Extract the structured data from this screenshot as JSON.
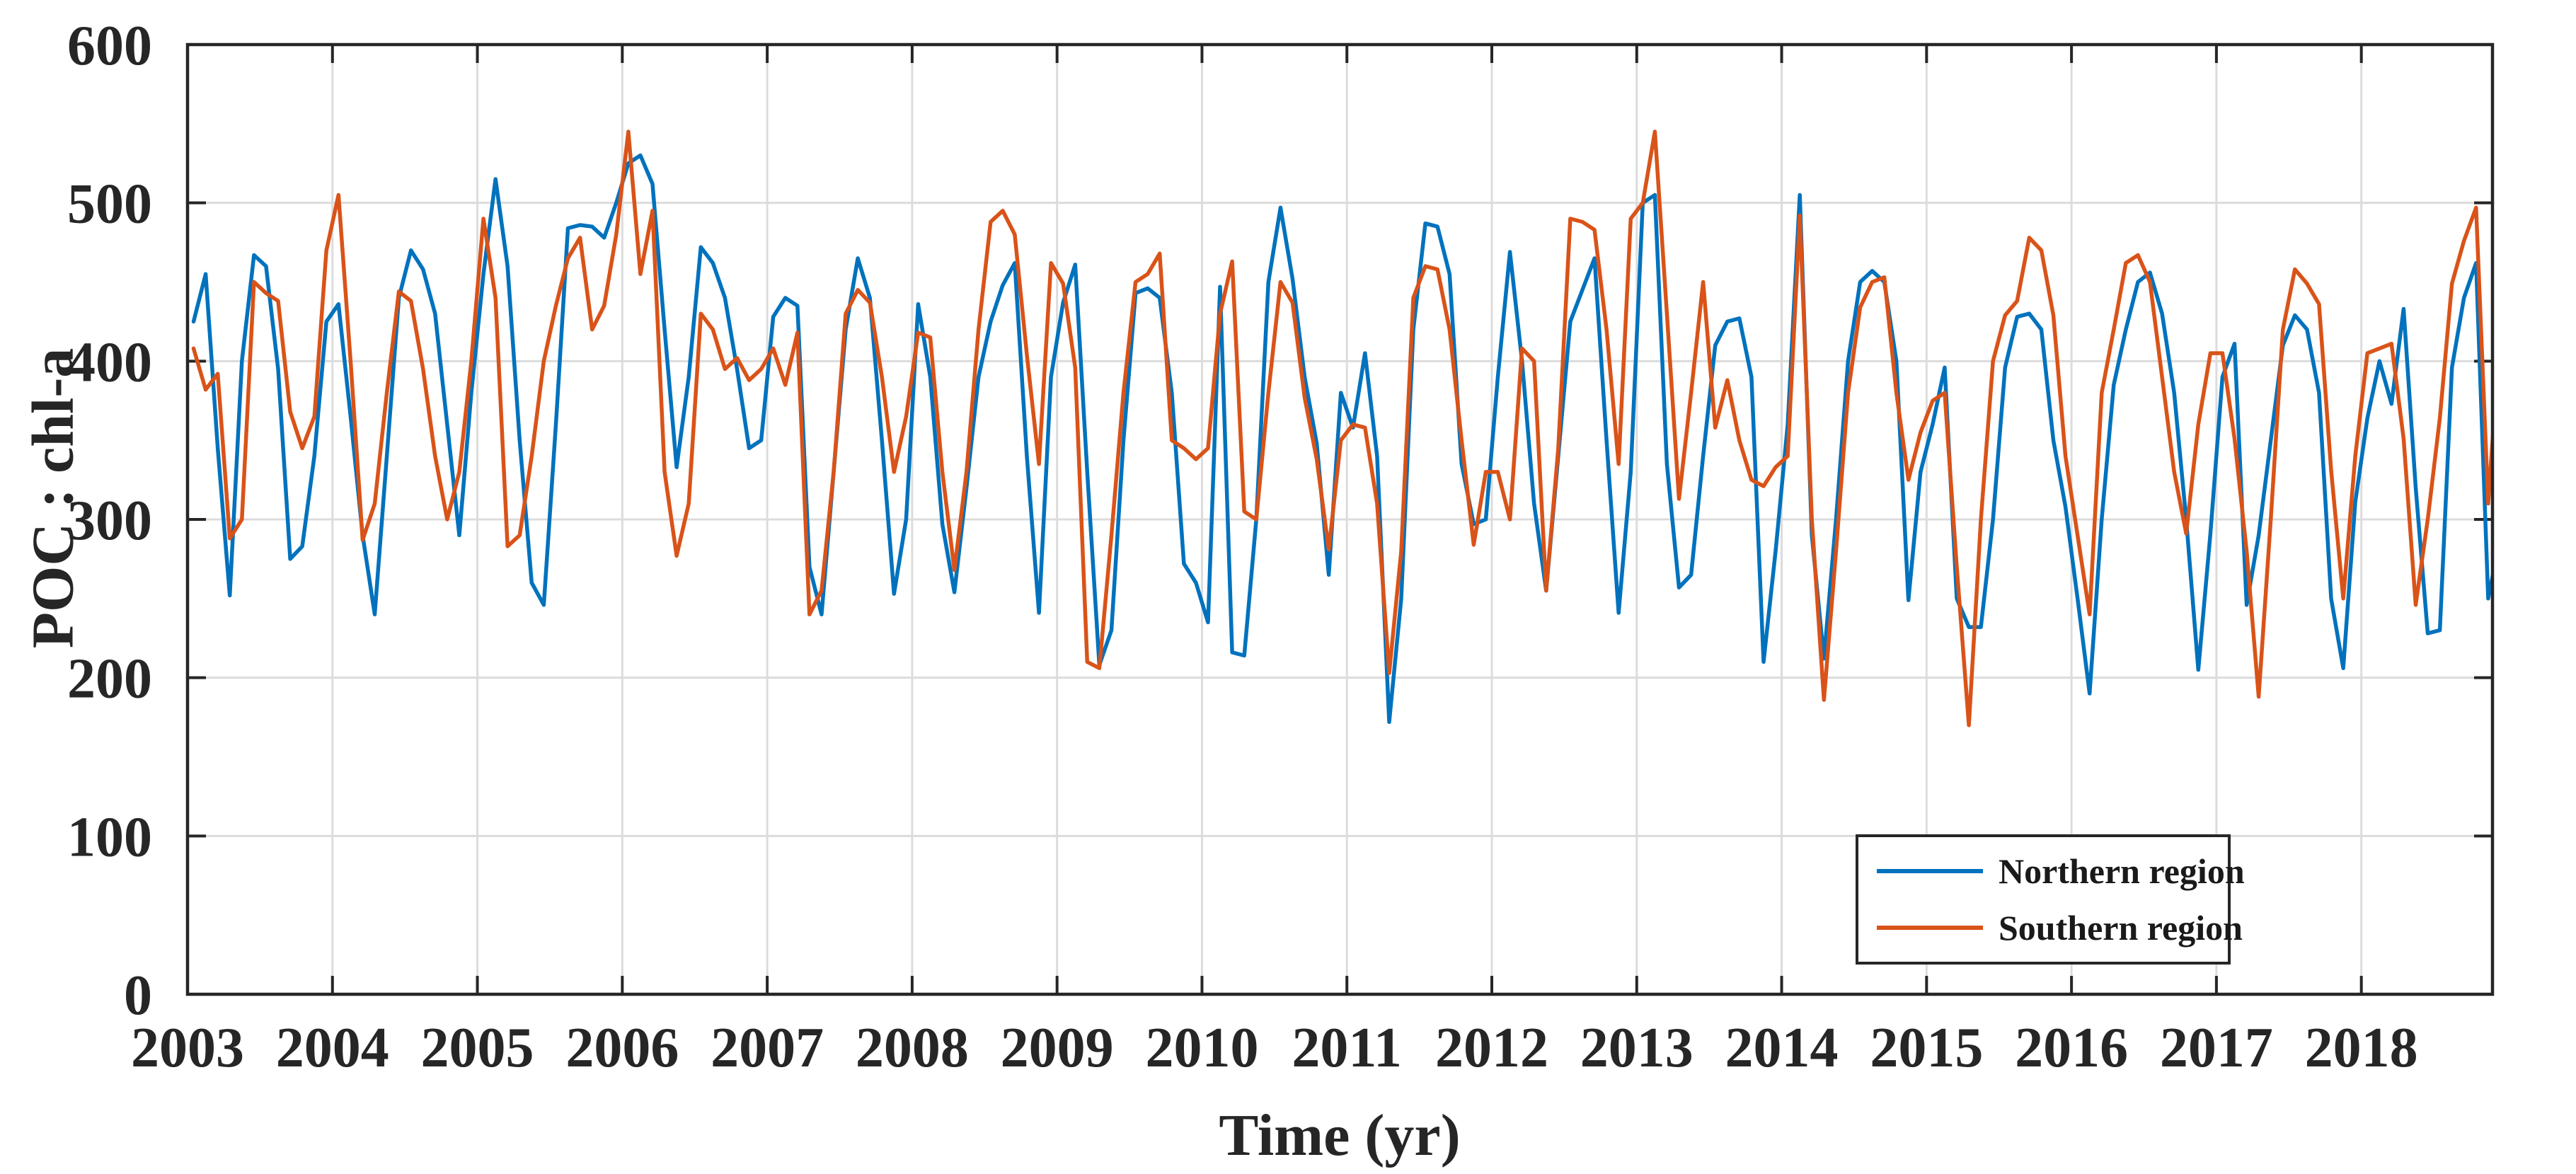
{
  "chart_data": {
    "type": "line",
    "title": "",
    "xlabel": "Time (yr)",
    "ylabel": "POC : chl-a",
    "xlim": [
      2003,
      2018.905
    ],
    "ylim": [
      0,
      600
    ],
    "y_ticks": [
      0,
      100,
      200,
      300,
      400,
      500,
      600
    ],
    "x_ticks": [
      2003,
      2004,
      2005,
      2006,
      2007,
      2008,
      2009,
      2010,
      2011,
      2012,
      2013,
      2014,
      2015,
      2016,
      2017,
      2018
    ],
    "grid": true,
    "legend_position": "bottom-right",
    "x_start_year": 2003,
    "sampling": "monthly",
    "colors": {
      "axis": "#262626",
      "grid": "#dcdcdc",
      "background": "#ffffff"
    },
    "series": [
      {
        "name": "Northern region",
        "color": "#0072BD",
        "values": [
          425,
          455,
          345,
          252,
          400,
          467,
          460,
          395,
          275,
          283,
          340,
          425,
          436,
          365,
          290,
          240,
          340,
          440,
          470,
          458,
          430,
          360,
          290,
          380,
          455,
          515,
          460,
          350,
          260,
          246,
          360,
          484,
          486,
          485,
          478,
          500,
          525,
          530,
          512,
          420,
          333,
          390,
          472,
          462,
          440,
          395,
          345,
          350,
          428,
          440,
          435,
          270,
          240,
          330,
          420,
          465,
          440,
          350,
          253,
          300,
          436,
          390,
          297,
          254,
          320,
          390,
          425,
          448,
          462,
          340,
          241,
          390,
          437,
          461,
          330,
          208,
          230,
          350,
          443,
          446,
          440,
          380,
          272,
          260,
          235,
          447,
          216,
          214,
          300,
          450,
          497,
          452,
          390,
          348,
          265,
          380,
          358,
          405,
          340,
          172,
          250,
          420,
          487,
          485,
          455,
          335,
          297,
          300,
          390,
          469,
          400,
          310,
          255,
          340,
          425,
          445,
          465,
          350,
          241,
          330,
          500,
          505,
          335,
          257,
          265,
          340,
          410,
          425,
          427,
          390,
          210,
          280,
          360,
          505,
          290,
          212,
          300,
          400,
          450,
          457,
          450,
          400,
          249,
          330,
          360,
          396,
          250,
          232,
          232,
          300,
          396,
          428,
          430,
          420,
          350,
          308,
          250,
          190,
          300,
          385,
          420,
          450,
          456,
          430,
          380,
          300,
          205,
          291,
          390,
          411,
          246,
          290,
          350,
          410,
          429,
          420,
          380,
          250,
          206,
          311,
          364,
          400,
          373,
          433,
          320,
          228,
          230,
          396,
          440,
          462,
          250,
          288
        ]
      },
      {
        "name": "Southern region",
        "color": "#D95319",
        "values": [
          408,
          382,
          392,
          288,
          300,
          450,
          443,
          438,
          368,
          345,
          365,
          470,
          505,
          400,
          287,
          310,
          380,
          444,
          438,
          395,
          340,
          300,
          330,
          400,
          490,
          440,
          283,
          290,
          340,
          400,
          435,
          465,
          478,
          420,
          435,
          480,
          545,
          455,
          495,
          330,
          277,
          310,
          430,
          420,
          395,
          402,
          388,
          395,
          408,
          385,
          418,
          240,
          255,
          330,
          430,
          445,
          437,
          390,
          330,
          365,
          418,
          415,
          330,
          268,
          330,
          420,
          488,
          495,
          480,
          404,
          335,
          462,
          449,
          396,
          210,
          206,
          290,
          380,
          450,
          455,
          468,
          350,
          345,
          338,
          345,
          430,
          463,
          305,
          300,
          380,
          450,
          437,
          377,
          338,
          281,
          350,
          360,
          358,
          310,
          203,
          280,
          440,
          460,
          458,
          420,
          350,
          284,
          330,
          330,
          300,
          408,
          400,
          255,
          345,
          490,
          488,
          483,
          420,
          335,
          490,
          500,
          545,
          430,
          313,
          380,
          450,
          358,
          388,
          350,
          325,
          321,
          333,
          340,
          492,
          300,
          186,
          280,
          380,
          434,
          450,
          453,
          380,
          325,
          355,
          375,
          380,
          270,
          170,
          300,
          400,
          429,
          438,
          478,
          470,
          429,
          340,
          290,
          240,
          380,
          420,
          462,
          467,
          450,
          390,
          330,
          291,
          360,
          405,
          405,
          351,
          280,
          188,
          300,
          420,
          458,
          449,
          436,
          331,
          250,
          340,
          405,
          408,
          411,
          351,
          246,
          300,
          364,
          449,
          476,
          497,
          310,
          420
        ]
      }
    ]
  }
}
